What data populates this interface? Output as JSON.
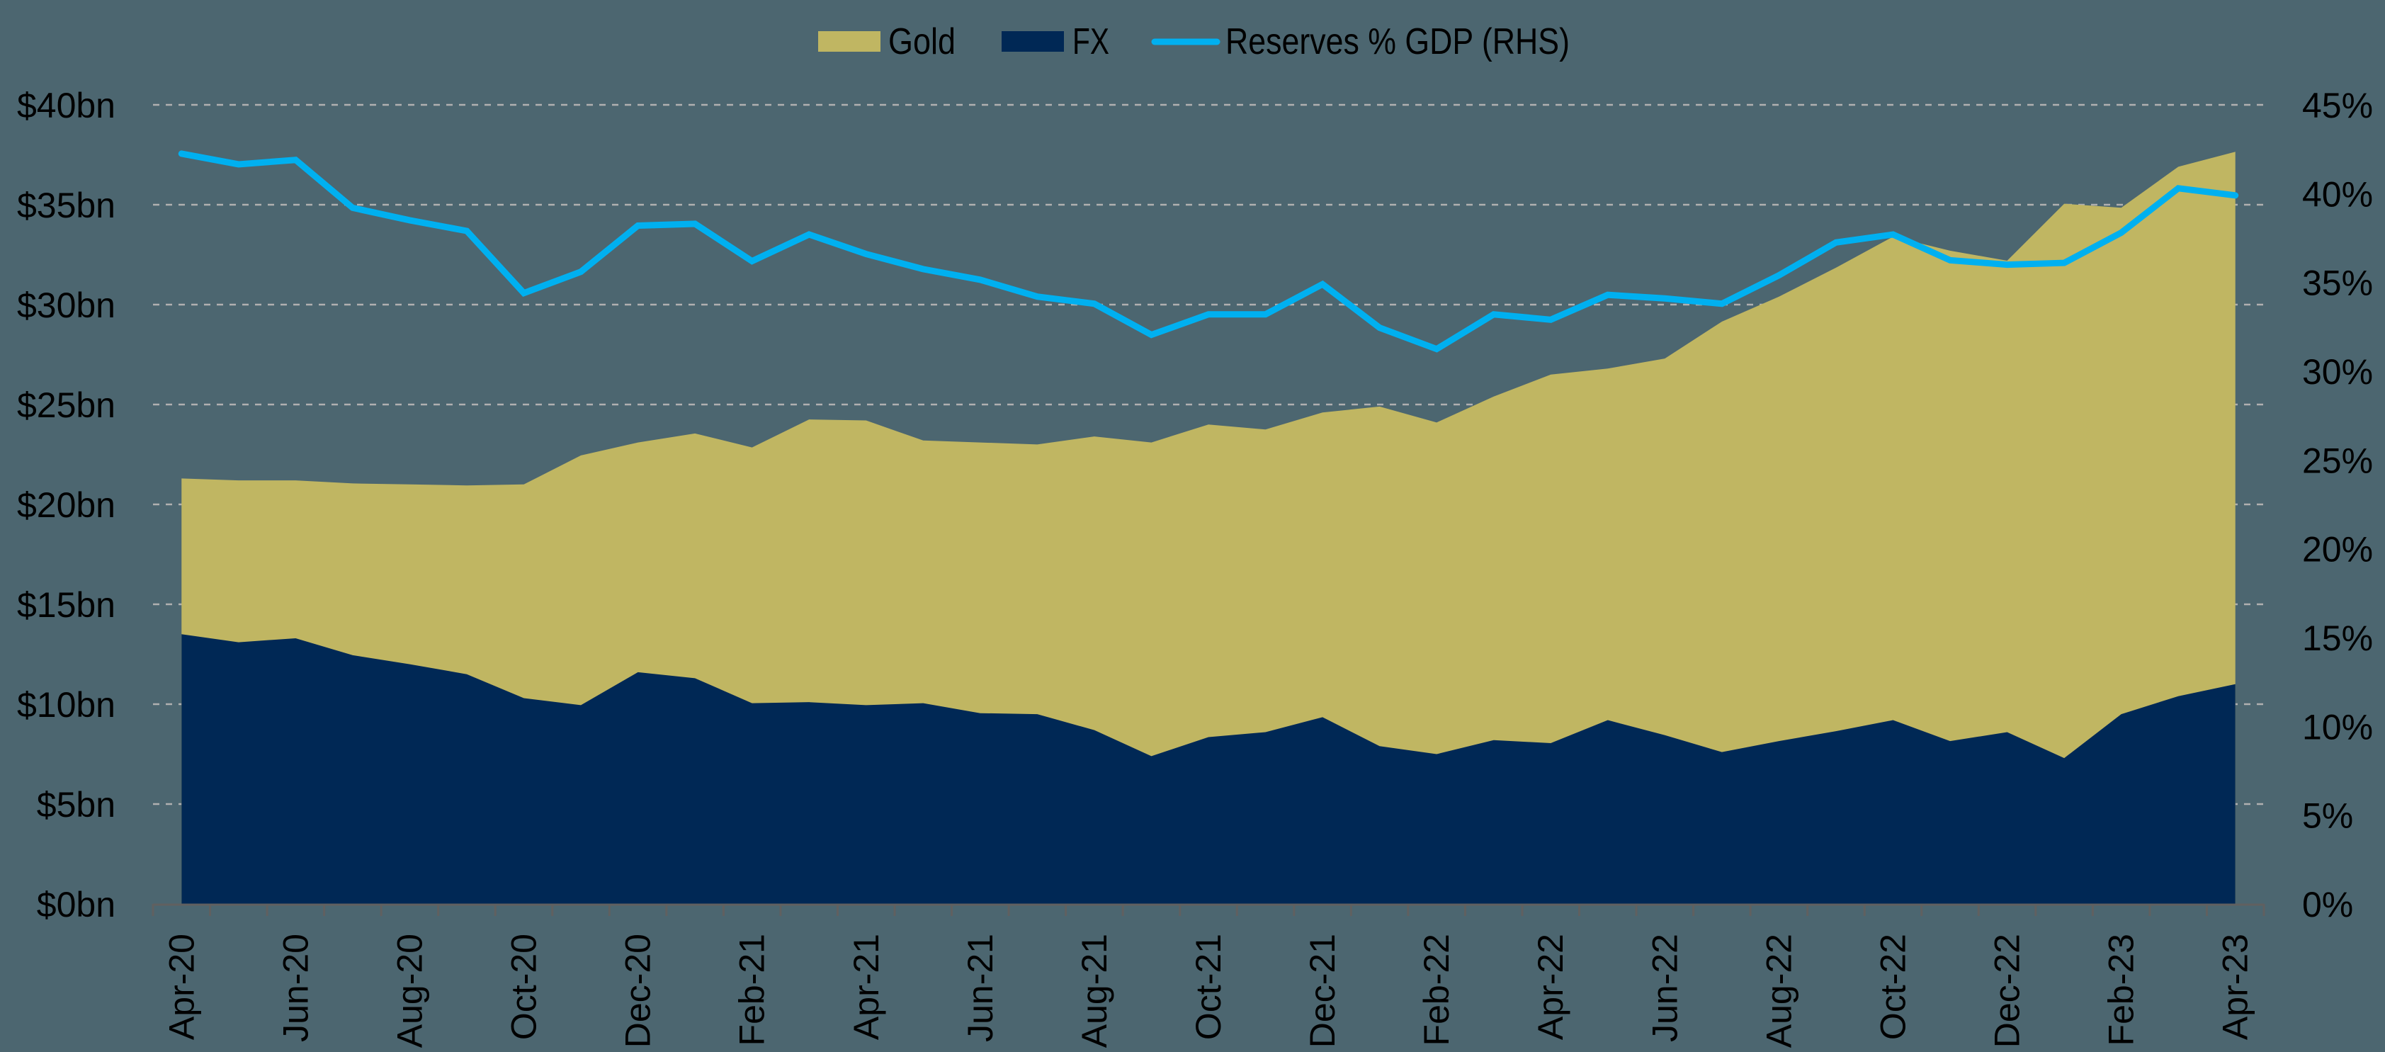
{
  "chart_data": {
    "type": "area",
    "subtype": "stacked area with line on secondary axis",
    "title": "",
    "xlabel": "",
    "ylabel": "",
    "y2label": "",
    "categories": [
      "Apr-20",
      "May-20",
      "Jun-20",
      "Jul-20",
      "Aug-20",
      "Sep-20",
      "Oct-20",
      "Nov-20",
      "Dec-20",
      "Jan-21",
      "Feb-21",
      "Mar-21",
      "Apr-21",
      "May-21",
      "Jun-21",
      "Jul-21",
      "Aug-21",
      "Sep-21",
      "Oct-21",
      "Nov-21",
      "Dec-21",
      "Jan-22",
      "Feb-22",
      "Mar-22",
      "Apr-22",
      "May-22",
      "Jun-22",
      "Jul-22",
      "Aug-22",
      "Sep-22",
      "Oct-22",
      "Nov-22",
      "Dec-22",
      "Jan-23",
      "Feb-23",
      "Mar-23",
      "Apr-23"
    ],
    "x_tick_labels": [
      "Apr-20",
      "Jun-20",
      "Aug-20",
      "Oct-20",
      "Dec-20",
      "Feb-21",
      "Apr-21",
      "Jun-21",
      "Aug-21",
      "Oct-21",
      "Dec-21",
      "Feb-22",
      "Apr-22",
      "Jun-22",
      "Aug-22",
      "Oct-22",
      "Dec-22",
      "Feb-23",
      "Apr-23"
    ],
    "series": [
      {
        "name": "FX",
        "type": "area",
        "axis": "left",
        "color": "#002855",
        "values": [
          13.5,
          13.1,
          13.3,
          12.45,
          12.0,
          11.5,
          10.3,
          9.95,
          11.6,
          11.3,
          10.05,
          10.1,
          9.95,
          10.05,
          9.55,
          9.5,
          8.7,
          7.4,
          8.35,
          8.6,
          9.35,
          7.9,
          7.5,
          8.2,
          8.05,
          9.2,
          8.45,
          7.6,
          8.15,
          8.65,
          9.2,
          8.15,
          8.6,
          7.3,
          9.5,
          10.4,
          11.0
        ]
      },
      {
        "name": "Gold",
        "type": "area",
        "axis": "left",
        "color": "#c0b662",
        "stacked_total": [
          21.3,
          21.2,
          21.2,
          21.05,
          21.0,
          20.95,
          21.0,
          22.45,
          23.1,
          23.55,
          22.85,
          24.25,
          24.2,
          23.2,
          23.1,
          23.0,
          23.4,
          23.1,
          24.0,
          23.75,
          24.6,
          24.9,
          24.1,
          25.4,
          26.5,
          26.8,
          27.3,
          29.15,
          30.4,
          31.85,
          33.4,
          32.7,
          32.2,
          35.05,
          34.85,
          36.9,
          37.65
        ],
        "values": [
          7.8,
          8.1,
          7.9,
          8.6,
          9.0,
          9.45,
          10.7,
          12.5,
          11.5,
          12.25,
          12.8,
          14.15,
          14.25,
          13.15,
          13.55,
          13.5,
          14.7,
          15.7,
          15.65,
          15.15,
          15.25,
          17.0,
          16.6,
          17.2,
          18.45,
          17.6,
          18.85,
          21.55,
          22.25,
          23.2,
          24.2,
          24.55,
          23.6,
          27.75,
          25.35,
          26.5,
          26.65
        ]
      },
      {
        "name": "Reserves % GDP (RHS)",
        "type": "line",
        "axis": "right",
        "color": "#00b0f0",
        "values": [
          42.25,
          41.65,
          41.9,
          39.2,
          38.5,
          37.9,
          34.4,
          35.6,
          38.2,
          38.3,
          36.2,
          37.7,
          36.6,
          35.75,
          35.15,
          34.2,
          33.8,
          32.05,
          33.2,
          33.2,
          34.9,
          32.45,
          31.25,
          33.2,
          32.9,
          34.3,
          34.1,
          33.8,
          35.4,
          37.25,
          37.7,
          36.25,
          36.0,
          36.1,
          37.8,
          40.3,
          39.9
        ]
      }
    ],
    "y_axis_left": {
      "min": 0,
      "max": 40,
      "step": 5,
      "tick_labels": [
        "$0bn",
        "$5bn",
        "$10bn",
        "$15bn",
        "$20bn",
        "$25bn",
        "$30bn",
        "$35bn",
        "$40bn"
      ]
    },
    "y_axis_right": {
      "min": 0,
      "max": 45,
      "step": 5,
      "tick_labels": [
        "0%",
        "5%",
        "10%",
        "15%",
        "20%",
        "25%",
        "30%",
        "35%",
        "40%",
        "45%"
      ]
    },
    "grid": {
      "horizontal": true,
      "style": "dashed",
      "color": "#b0b0b0"
    },
    "legend": {
      "position": "top-center",
      "entries": [
        {
          "label": "Gold",
          "marker": "square",
          "color": "#c0b662"
        },
        {
          "label": "FX",
          "marker": "square",
          "color": "#002855"
        },
        {
          "label": "Reserves % GDP (RHS)",
          "marker": "line",
          "color": "#00b0f0"
        }
      ]
    }
  },
  "colors": {
    "background": "#4c6670",
    "gridline": "#b0b0b0",
    "axis": "#606060",
    "text": "#000000"
  }
}
